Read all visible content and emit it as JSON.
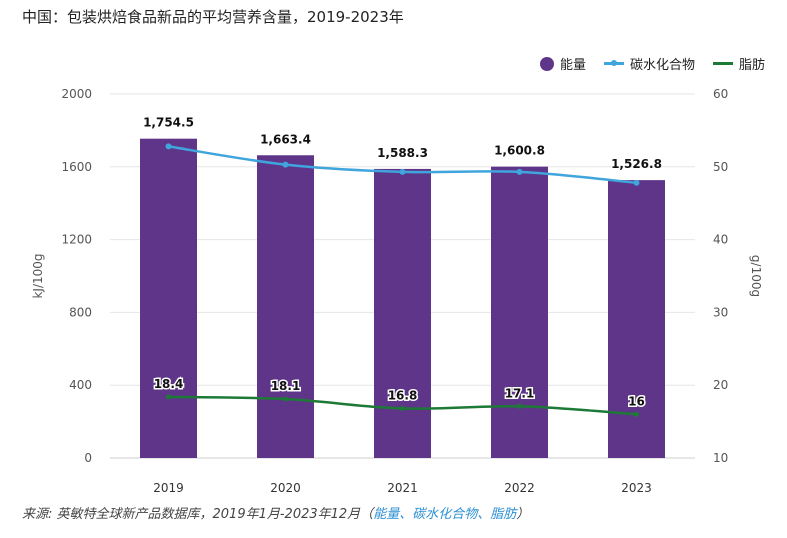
{
  "title": "中国：包装烘焙食品新品的平均营养含量，2019-2023年",
  "source": {
    "prefix": "来源: 英敏特全球新产品数据库，2019年1月-2023年12月（",
    "highlight": "能量、碳水化合物、脂肪",
    "suffix": "）"
  },
  "colors": {
    "energy": "#5f3589",
    "carbs": "#3fa5dc",
    "fat": "#1c7a36",
    "grid": "#e6e6e6",
    "axis_text": "#555555"
  },
  "chart_data": {
    "type": "bar+line",
    "categories": [
      "2019",
      "2020",
      "2021",
      "2022",
      "2023"
    ],
    "left_axis": {
      "label": "kJ/100g",
      "min": 0,
      "max": 2000,
      "ticks": [
        "0",
        "400",
        "800",
        "1200",
        "1600",
        "2000"
      ]
    },
    "right_axis": {
      "label": "g/100g",
      "min": 10,
      "max": 60,
      "ticks": [
        "10",
        "20",
        "30",
        "40",
        "50",
        "60"
      ]
    },
    "grid": true,
    "legend_position": "top-right",
    "series": [
      {
        "name": "能量",
        "kind": "bar",
        "axis": "left",
        "values": [
          1754.5,
          1663.4,
          1588.3,
          1600.8,
          1526.8
        ],
        "labels": [
          "1,754.5",
          "1,663.4",
          "1,588.3",
          "1,600.8",
          "1,526.8"
        ]
      },
      {
        "name": "碳水化合物",
        "kind": "line",
        "axis": "right",
        "values": [
          52.8,
          50.3,
          49.3,
          49.3,
          47.8
        ]
      },
      {
        "name": "脂肪",
        "kind": "line",
        "axis": "right",
        "values": [
          18.4,
          18.1,
          16.8,
          17.1,
          16
        ],
        "labels": [
          "18.4",
          "18.1",
          "16.8",
          "17.1",
          "16"
        ]
      }
    ]
  }
}
